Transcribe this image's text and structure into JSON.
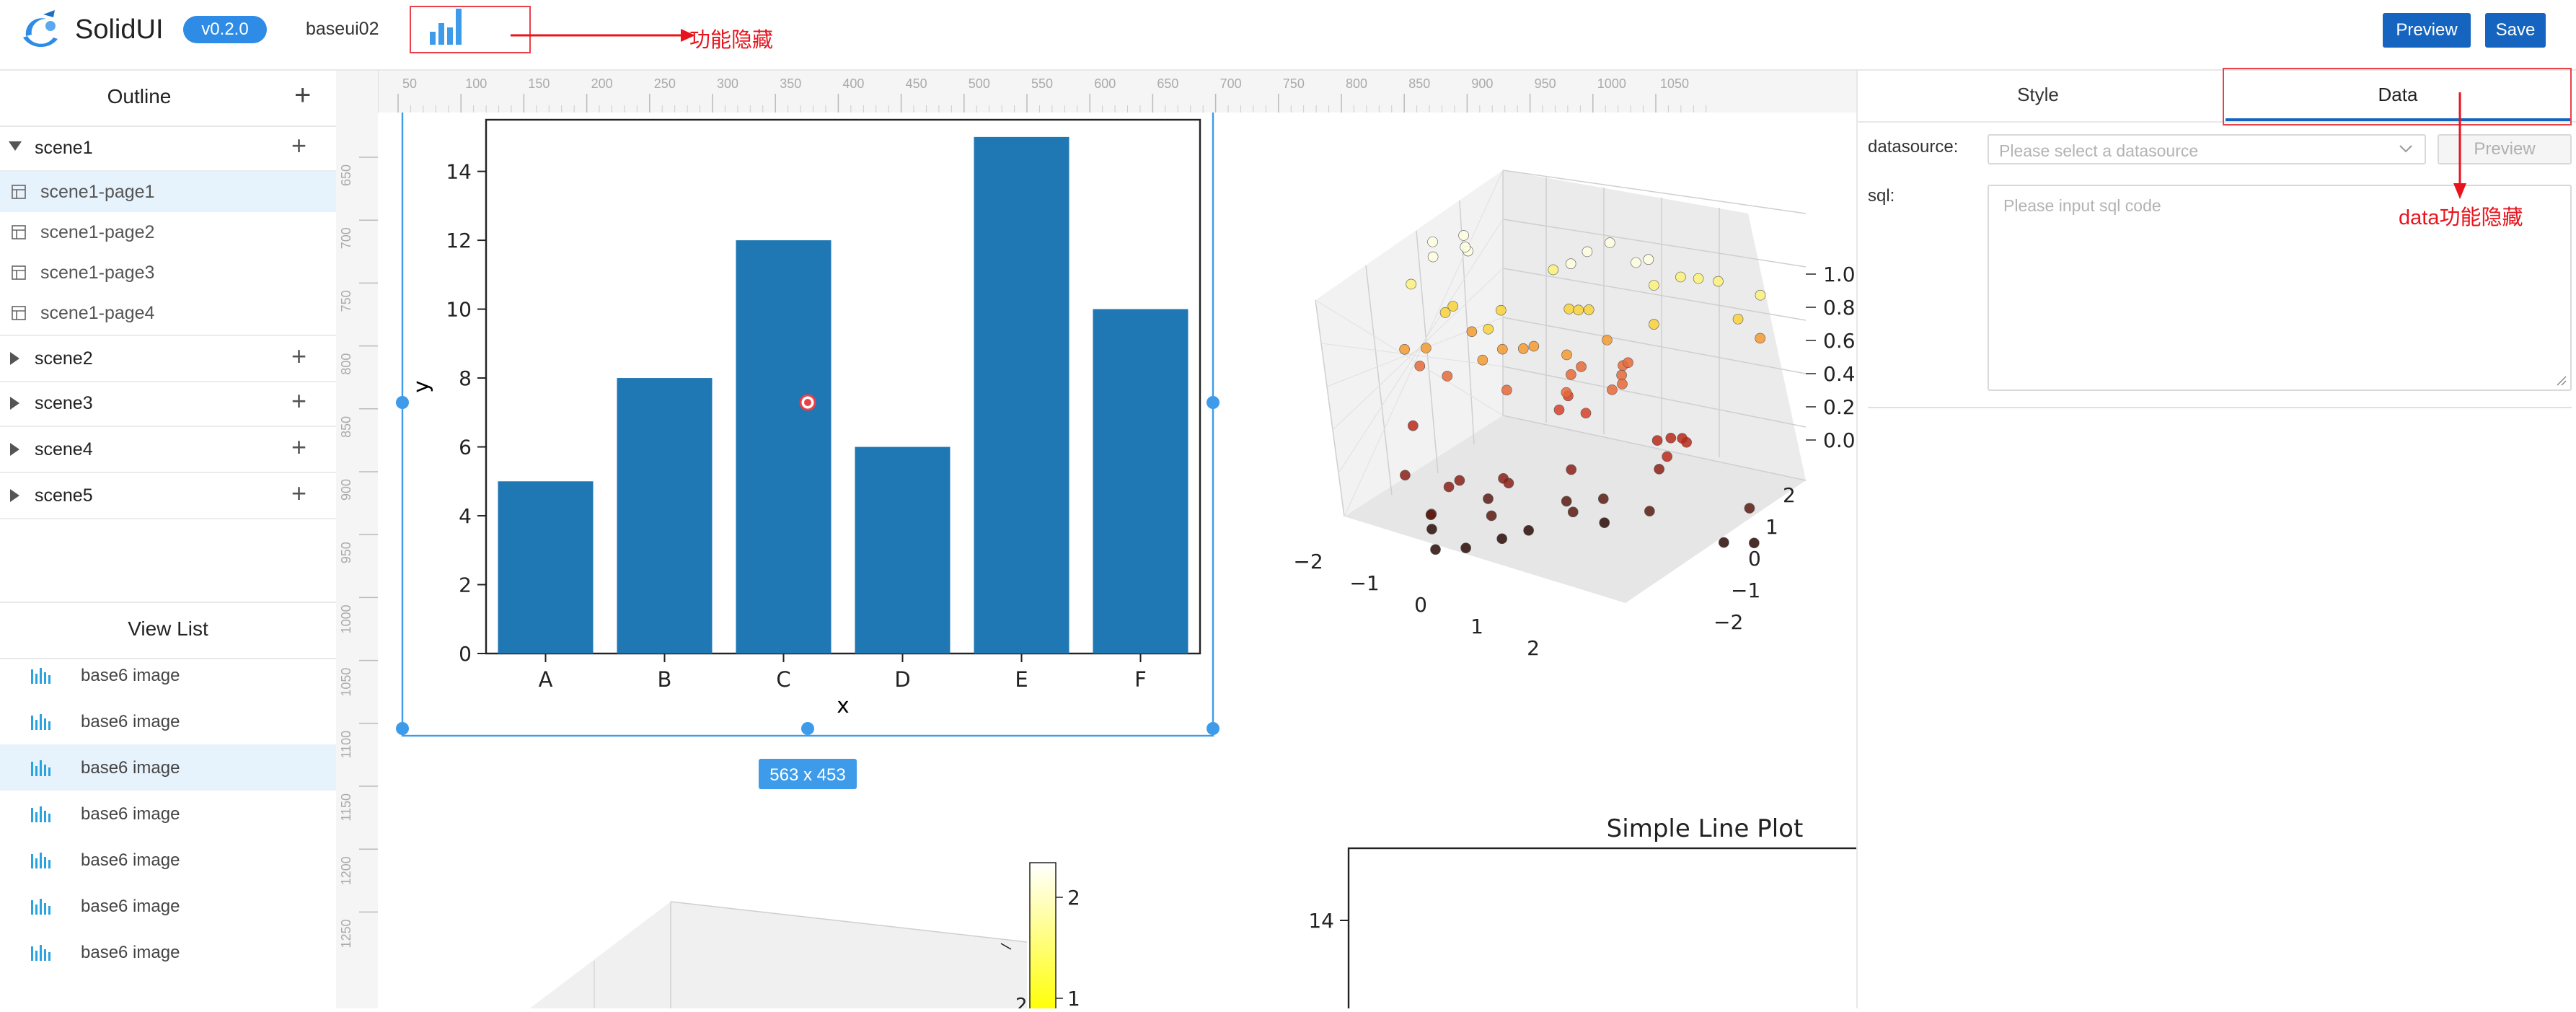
{
  "header": {
    "app_name": "SolidUI",
    "version": "v0.2.0",
    "project_name": "baseui02",
    "function_annotation": "功能隐藏",
    "preview_label": "Preview",
    "save_label": "Save"
  },
  "outline": {
    "title": "Outline",
    "scenes": [
      {
        "label": "scene1",
        "expanded": true,
        "pages": [
          {
            "label": "scene1-page1",
            "selected": true
          },
          {
            "label": "scene1-page2"
          },
          {
            "label": "scene1-page3"
          },
          {
            "label": "scene1-page4"
          }
        ]
      },
      {
        "label": "scene2"
      },
      {
        "label": "scene3"
      },
      {
        "label": "scene4"
      },
      {
        "label": "scene5"
      }
    ]
  },
  "view_list": {
    "title": "View List",
    "items": [
      {
        "label": "base6 image"
      },
      {
        "label": "base6 image"
      },
      {
        "label": "base6 image",
        "selected": true
      },
      {
        "label": "base6 image"
      },
      {
        "label": "base6 image"
      },
      {
        "label": "base6 image"
      },
      {
        "label": "base6 image"
      }
    ]
  },
  "rulers": {
    "top_ticks": [
      "50",
      "100",
      "150",
      "200",
      "250",
      "300",
      "350",
      "400",
      "450",
      "500",
      "550",
      "600",
      "650",
      "700",
      "750",
      "800",
      "850",
      "900",
      "950",
      "1000",
      "1050"
    ],
    "left_ticks": [
      "650",
      "700",
      "750",
      "800",
      "850",
      "900",
      "950",
      "1000",
      "1050",
      "1100",
      "1150",
      "1200",
      "1250"
    ]
  },
  "canvas": {
    "selection_size": "563 x 453"
  },
  "chart_data": [
    {
      "type": "bar",
      "categories": [
        "A",
        "B",
        "C",
        "D",
        "E",
        "F"
      ],
      "values": [
        5,
        8,
        12,
        6,
        15,
        10
      ],
      "xlabel": "x",
      "ylabel": "y",
      "ylim": [
        0,
        15.5
      ],
      "yticks": [
        "0",
        "2",
        "4",
        "6",
        "8",
        "10",
        "12",
        "14"
      ],
      "color": "#1f77b4"
    },
    {
      "type": "scatter",
      "projection": "3d",
      "x_ticks": [
        "−2",
        "−1",
        "0",
        "1",
        "2"
      ],
      "y_ticks": [
        "2",
        "1",
        "0",
        "−1",
        "−2"
      ],
      "z_ticks": [
        "0.0",
        "0.2",
        "0.4",
        "0.6",
        "0.8",
        "1.0"
      ],
      "colormap": "hot"
    },
    {
      "type": "scatter",
      "projection": "3d",
      "colorbar_ticks": [
        "2",
        "1"
      ],
      "colormap": "hot"
    },
    {
      "type": "line",
      "title": "Simple Line Plot",
      "yticks": [
        "14"
      ]
    }
  ],
  "style_panel": {
    "tab_style": "Style",
    "tab_data": "Data",
    "datasource_label": "datasource:",
    "datasource_placeholder": "Please select a datasource",
    "preview_label": "Preview",
    "sql_label": "sql:",
    "sql_placeholder": "Please input sql code",
    "data_annotation": "data功能隐藏"
  },
  "colors": {
    "accent": "#1565c0",
    "annotation": "#e8141d",
    "selection": "#3d9be9",
    "bar": "#1f77b4"
  }
}
